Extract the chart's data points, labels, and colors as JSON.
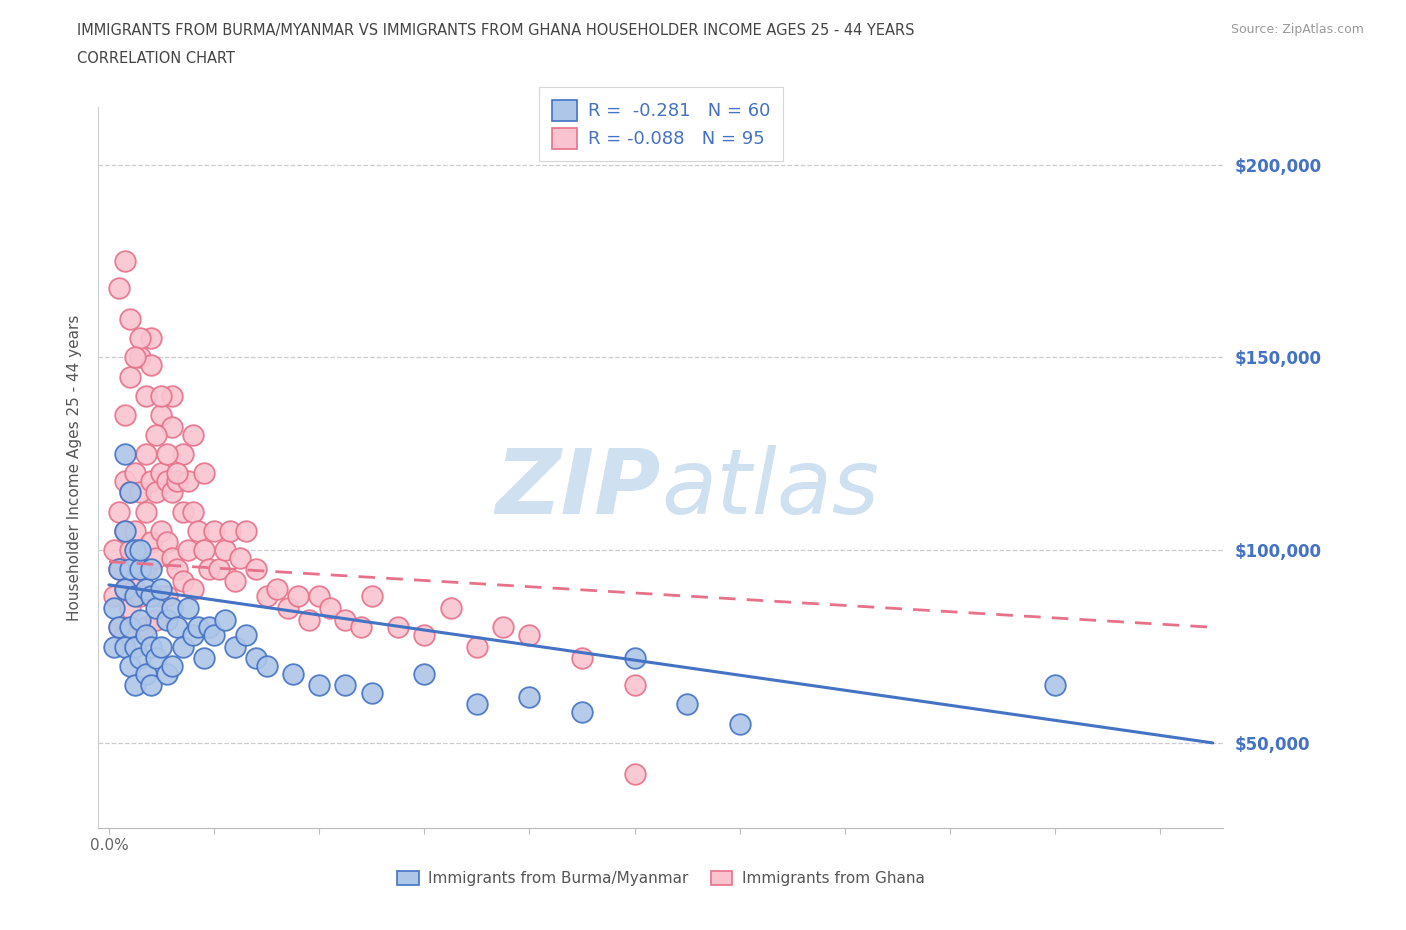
{
  "title_line1": "IMMIGRANTS FROM BURMA/MYANMAR VS IMMIGRANTS FROM GHANA HOUSEHOLDER INCOME AGES 25 - 44 YEARS",
  "title_line2": "CORRELATION CHART",
  "source_text": "Source: ZipAtlas.com",
  "ylabel": "Householder Income Ages 25 - 44 years",
  "xlim": [
    -0.002,
    0.212
  ],
  "ylim": [
    28000,
    215000
  ],
  "xticks": [
    0.0,
    0.02,
    0.04,
    0.06,
    0.08,
    0.1,
    0.12,
    0.14,
    0.16,
    0.18,
    0.2
  ],
  "xtick_labels_show": {
    "0.0": "0.0%"
  },
  "ytick_positions": [
    50000,
    100000,
    150000,
    200000
  ],
  "ytick_labels": [
    "$50,000",
    "$100,000",
    "$150,000",
    "$200,000"
  ],
  "hlines": [
    50000,
    100000,
    150000,
    200000
  ],
  "blue_fill": "#aec6e8",
  "blue_edge": "#4472c4",
  "pink_fill": "#f9c4d0",
  "pink_edge": "#e8718a",
  "blue_line_color": "#4472c4",
  "pink_line_color": "#e8718a",
  "right_axis_color": "#4472c4",
  "watermark_color": "#cfe0f0",
  "legend_label1": "R =  -0.281   N = 60",
  "legend_label2": "R = -0.088   N = 95",
  "legend_bottom_label1": "Immigrants from Burma/Myanmar",
  "legend_bottom_label2": "Immigrants from Ghana",
  "blue_line_x0": 0.0,
  "blue_line_y0": 91000,
  "blue_line_x1": 0.21,
  "blue_line_y1": 50000,
  "pink_line_x0": 0.0,
  "pink_line_y0": 97000,
  "pink_line_x1": 0.21,
  "pink_line_y1": 80000,
  "blue_x": [
    0.001,
    0.001,
    0.002,
    0.002,
    0.003,
    0.003,
    0.003,
    0.004,
    0.004,
    0.004,
    0.004,
    0.005,
    0.005,
    0.005,
    0.005,
    0.006,
    0.006,
    0.006,
    0.007,
    0.007,
    0.007,
    0.008,
    0.008,
    0.008,
    0.009,
    0.009,
    0.01,
    0.01,
    0.011,
    0.011,
    0.012,
    0.012,
    0.013,
    0.014,
    0.015,
    0.016,
    0.017,
    0.018,
    0.019,
    0.02,
    0.022,
    0.024,
    0.026,
    0.028,
    0.03,
    0.035,
    0.04,
    0.045,
    0.05,
    0.06,
    0.07,
    0.08,
    0.09,
    0.1,
    0.11,
    0.12,
    0.18,
    0.003,
    0.006,
    0.008
  ],
  "blue_y": [
    85000,
    75000,
    95000,
    80000,
    105000,
    90000,
    75000,
    115000,
    95000,
    80000,
    70000,
    100000,
    88000,
    75000,
    65000,
    95000,
    82000,
    72000,
    90000,
    78000,
    68000,
    88000,
    75000,
    65000,
    85000,
    72000,
    90000,
    75000,
    82000,
    68000,
    85000,
    70000,
    80000,
    75000,
    85000,
    78000,
    80000,
    72000,
    80000,
    78000,
    82000,
    75000,
    78000,
    72000,
    70000,
    68000,
    65000,
    65000,
    63000,
    68000,
    60000,
    62000,
    58000,
    72000,
    60000,
    55000,
    65000,
    125000,
    100000,
    95000
  ],
  "pink_x": [
    0.001,
    0.001,
    0.002,
    0.002,
    0.002,
    0.003,
    0.003,
    0.003,
    0.003,
    0.004,
    0.004,
    0.004,
    0.005,
    0.005,
    0.005,
    0.006,
    0.006,
    0.006,
    0.007,
    0.007,
    0.007,
    0.007,
    0.008,
    0.008,
    0.008,
    0.009,
    0.009,
    0.009,
    0.01,
    0.01,
    0.01,
    0.011,
    0.011,
    0.011,
    0.012,
    0.012,
    0.013,
    0.013,
    0.014,
    0.014,
    0.015,
    0.015,
    0.016,
    0.016,
    0.017,
    0.018,
    0.019,
    0.02,
    0.021,
    0.022,
    0.023,
    0.024,
    0.025,
    0.026,
    0.028,
    0.03,
    0.032,
    0.034,
    0.036,
    0.038,
    0.04,
    0.042,
    0.045,
    0.048,
    0.05,
    0.055,
    0.06,
    0.065,
    0.07,
    0.075,
    0.08,
    0.09,
    0.1,
    0.003,
    0.004,
    0.006,
    0.007,
    0.008,
    0.01,
    0.012,
    0.014,
    0.016,
    0.018,
    0.004,
    0.006,
    0.008,
    0.01,
    0.012,
    0.002,
    0.005,
    0.009,
    0.011,
    0.013,
    0.003,
    0.1
  ],
  "pink_y": [
    100000,
    88000,
    110000,
    95000,
    80000,
    118000,
    105000,
    90000,
    78000,
    115000,
    100000,
    85000,
    120000,
    105000,
    90000,
    115000,
    100000,
    88000,
    125000,
    110000,
    95000,
    80000,
    118000,
    102000,
    88000,
    115000,
    98000,
    82000,
    120000,
    105000,
    88000,
    118000,
    102000,
    88000,
    115000,
    98000,
    118000,
    95000,
    110000,
    92000,
    118000,
    100000,
    110000,
    90000,
    105000,
    100000,
    95000,
    105000,
    95000,
    100000,
    105000,
    92000,
    98000,
    105000,
    95000,
    88000,
    90000,
    85000,
    88000,
    82000,
    88000,
    85000,
    82000,
    80000,
    88000,
    80000,
    78000,
    85000,
    75000,
    80000,
    78000,
    72000,
    65000,
    135000,
    145000,
    150000,
    140000,
    155000,
    135000,
    140000,
    125000,
    130000,
    120000,
    160000,
    155000,
    148000,
    140000,
    132000,
    168000,
    150000,
    130000,
    125000,
    120000,
    175000,
    42000
  ]
}
